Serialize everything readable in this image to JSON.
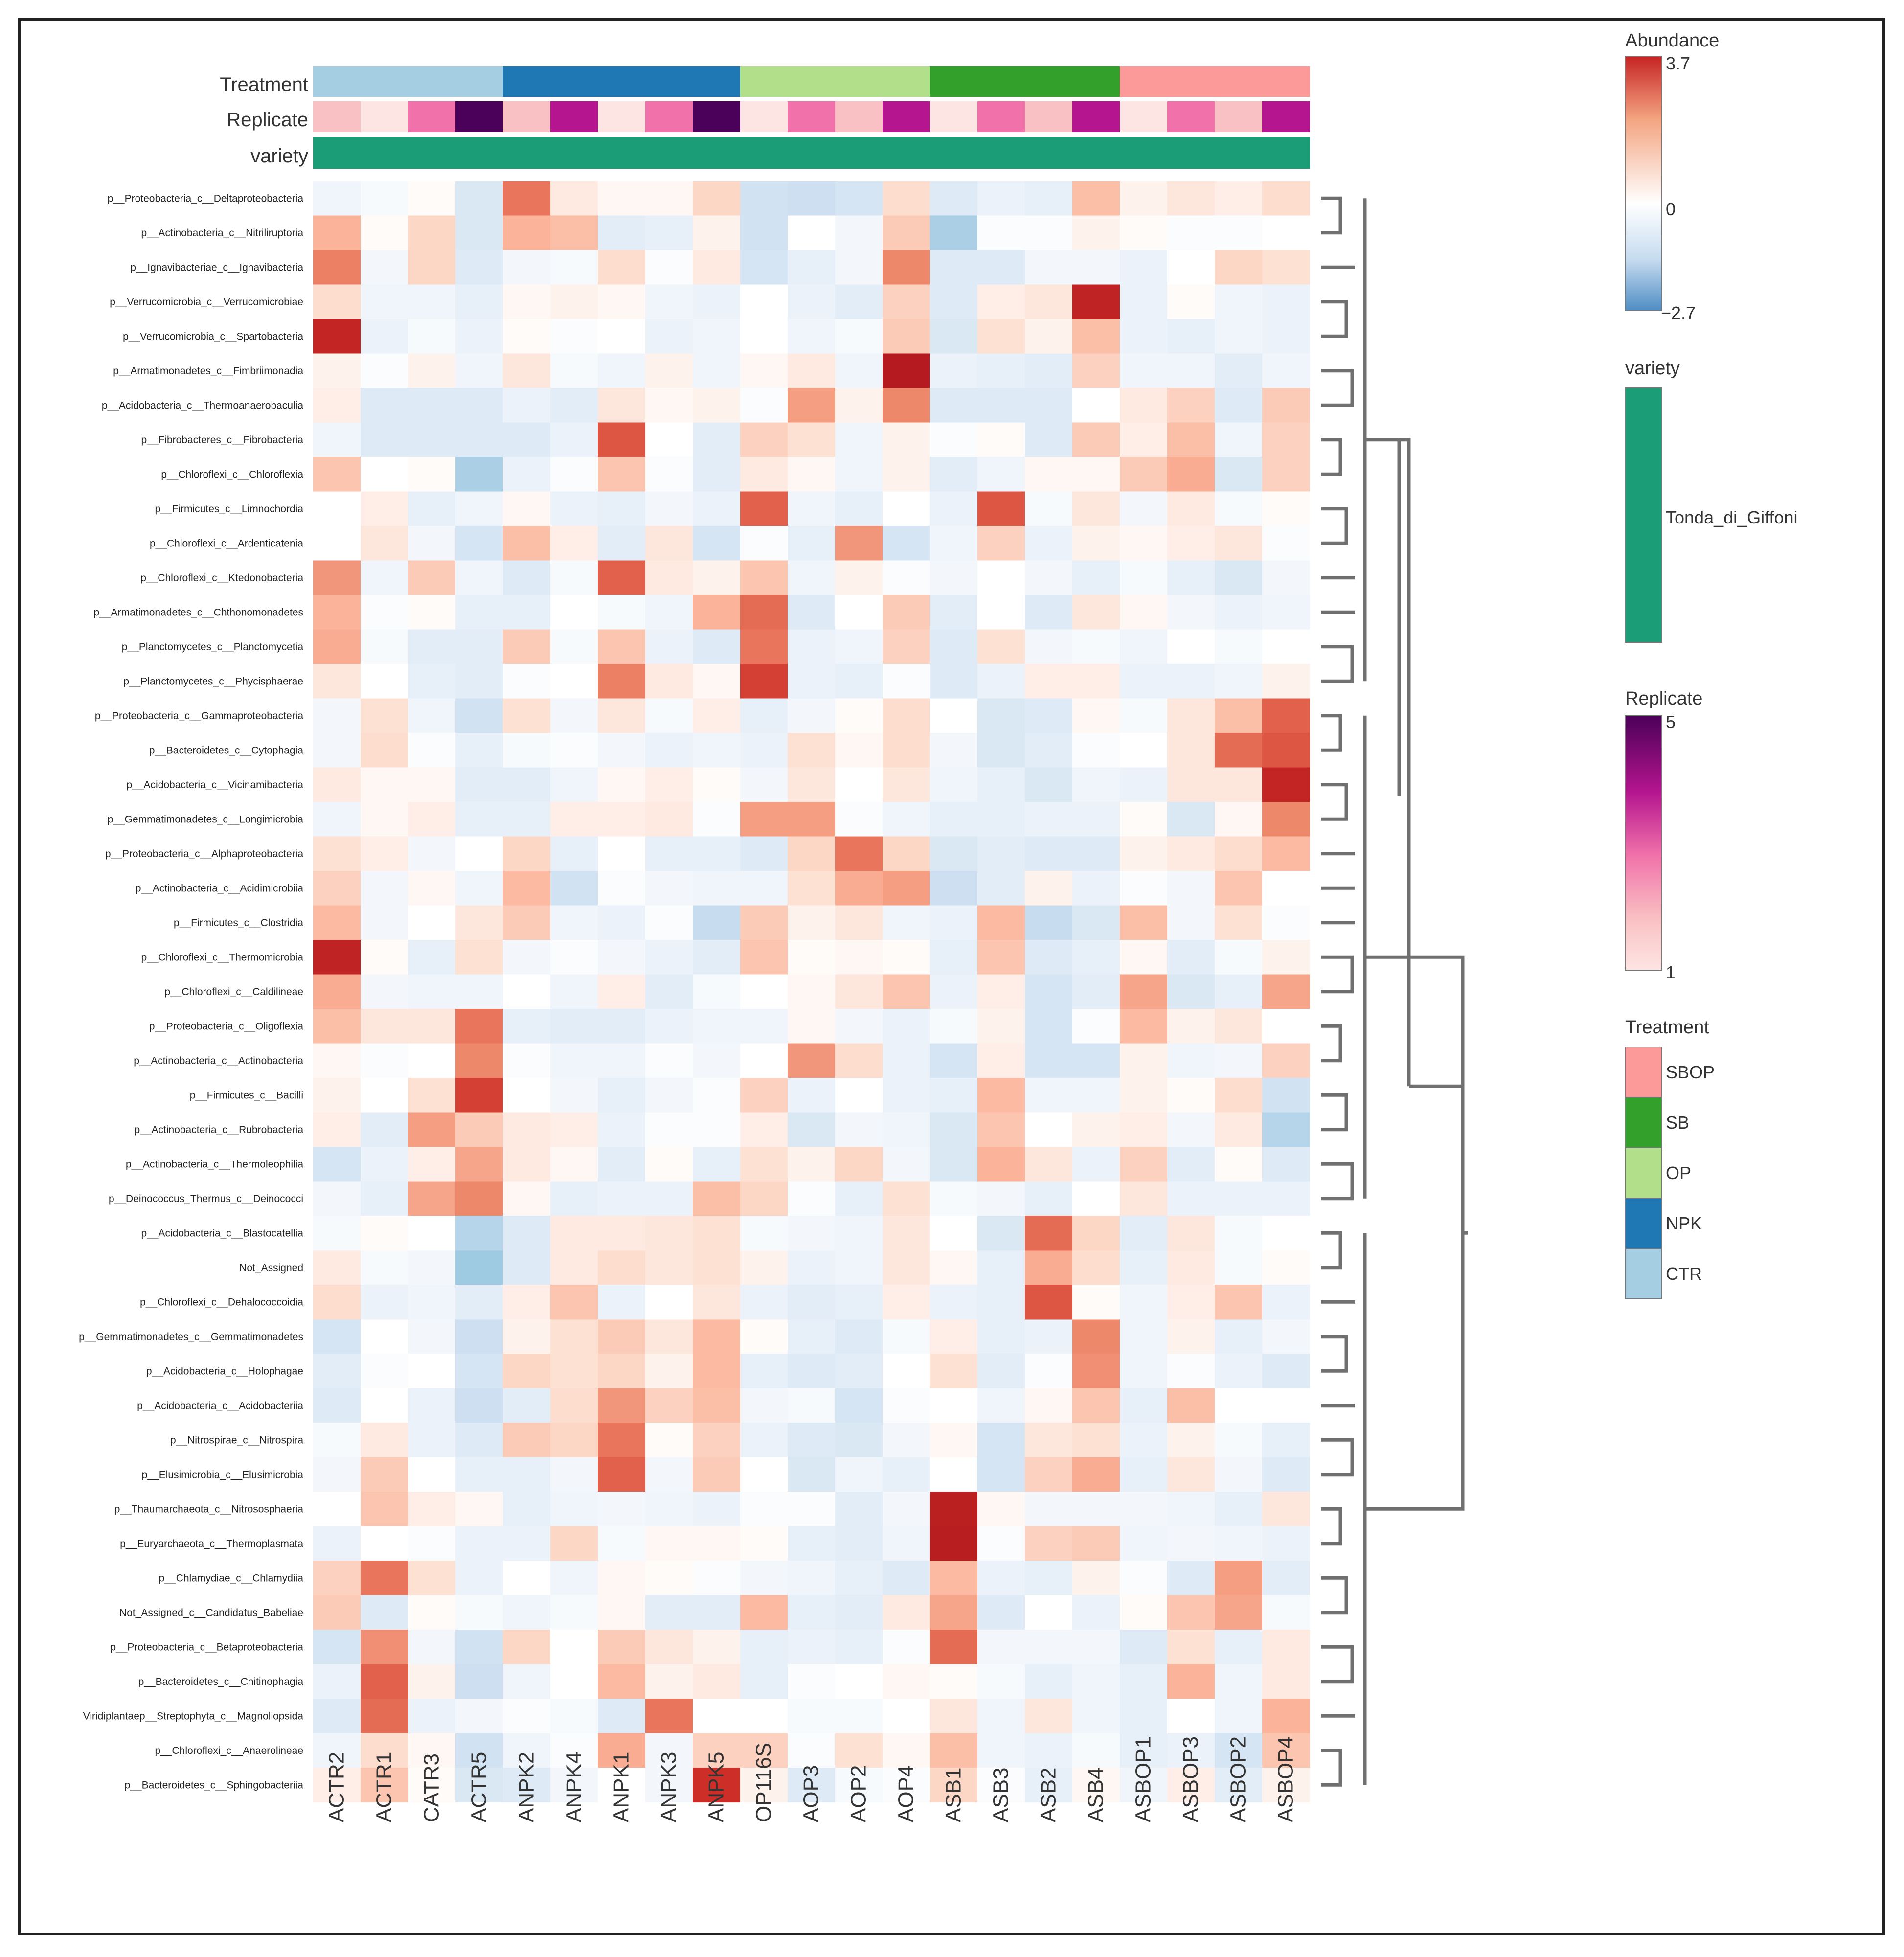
{
  "chart_data": {
    "type": "heatmap",
    "title": "",
    "columns": [
      "ACTR2",
      "ACTR1",
      "CATR3",
      "ACTR5",
      "ANPK2",
      "ANPK4",
      "ANPK1",
      "ANPK3",
      "ANPK5",
      "OP116S",
      "AOP3",
      "AOP2",
      "AOP4",
      "ASB1",
      "ASB3",
      "ASB2",
      "ASB4",
      "ASBOP1",
      "ASBOP3",
      "ASBOP2",
      "ASBOP4"
    ],
    "rows": [
      "p__Proteobacteria_c__Deltaproteobacteria",
      "p__Actinobacteria_c__Nitriliruptoria",
      "p__Ignavibacteriae_c__Ignavibacteria",
      "p__Verrucomicrobia_c__Verrucomicrobiae",
      "p__Verrucomicrobia_c__Spartobacteria",
      "p__Armatimonadetes_c__Fimbriimonadia",
      "p__Acidobacteria_c__Thermoanaerobaculia",
      "p__Fibrobacteres_c__Fibrobacteria",
      "p__Chloroflexi_c__Chloroflexia",
      "p__Firmicutes_c__Limnochordia",
      "p__Chloroflexi_c__Ardenticatenia",
      "p__Chloroflexi_c__Ktedonobacteria",
      "p__Armatimonadetes_c__Chthonomonadetes",
      "p__Planctomycetes_c__Planctomycetia",
      "p__Planctomycetes_c__Phycisphaerae",
      "p__Proteobacteria_c__Gammaproteobacteria",
      "p__Bacteroidetes_c__Cytophagia",
      "p__Acidobacteria_c__Vicinamibacteria",
      "p__Gemmatimonadetes_c__Longimicrobia",
      "p__Proteobacteria_c__Alphaproteobacteria",
      "p__Actinobacteria_c__Acidimicrobiia",
      "p__Firmicutes_c__Clostridia",
      "p__Chloroflexi_c__Thermomicrobia",
      "p__Chloroflexi_c__Caldilineae",
      "p__Proteobacteria_c__Oligoflexia",
      "p__Actinobacteria_c__Actinobacteria",
      "p__Firmicutes_c__Bacilli",
      "p__Actinobacteria_c__Rubrobacteria",
      "p__Actinobacteria_c__Thermoleophilia",
      "p__Deinococcus_Thermus_c__Deinococci",
      "p__Acidobacteria_c__Blastocatellia",
      "Not_Assigned",
      "p__Chloroflexi_c__Dehalococcoidia",
      "p__Gemmatimonadetes_c__Gemmatimonadetes",
      "p__Acidobacteria_c__Holophagae",
      "p__Acidobacteria_c__Acidobacteriia",
      "p__Nitrospirae_c__Nitrospira",
      "p__Elusimicrobia_c__Elusimicrobia",
      "p__Thaumarchaeota_c__Nitrososphaeria",
      "p__Euryarchaeota_c__Thermoplasmata",
      "p__Chlamydiae_c__Chlamydiia",
      "Not_Assigned_c__Candidatus_Babeliae",
      "p__Proteobacteria_c__Betaproteobacteria",
      "p__Bacteroidetes_c__Chitinophagia",
      "Viridiplantaep__Streptophyta_c__Magnoliopsida",
      "p__Chloroflexi_c__Anaerolineae",
      "p__Bacteroidetes_c__Sphingobacteriia"
    ],
    "values": [
      [
        -0.4,
        -0.2,
        0.1,
        -0.9,
        2.3,
        0.5,
        0.2,
        0.2,
        0.9,
        -1.1,
        -1.2,
        -1.0,
        0.8,
        -0.8,
        -0.5,
        -0.6,
        1.3,
        0.3,
        0.6,
        0.4,
        0.8
      ],
      [
        1.5,
        0.1,
        0.9,
        -0.9,
        1.5,
        1.3,
        -0.7,
        -0.6,
        0.3,
        -1.1,
        0.0,
        -0.3,
        1.1,
        -1.8,
        -0.1,
        -0.1,
        0.3,
        0.1,
        -0.1,
        -0.1,
        0.0
      ],
      [
        2.2,
        -0.3,
        0.9,
        -0.8,
        -0.3,
        -0.2,
        0.8,
        -0.1,
        0.5,
        -1.0,
        -0.6,
        -0.3,
        2.1,
        -0.8,
        -0.8,
        -0.3,
        -0.3,
        -0.5,
        0.0,
        0.9,
        0.7
      ],
      [
        0.8,
        -0.4,
        -0.4,
        -0.6,
        0.2,
        0.3,
        0.2,
        -0.4,
        -0.5,
        0.0,
        -0.5,
        -0.7,
        1.0,
        -0.8,
        0.4,
        0.6,
        3.4,
        -0.5,
        0.1,
        -0.4,
        -0.5
      ],
      [
        3.3,
        -0.5,
        -0.2,
        -0.5,
        0.1,
        -0.1,
        0.0,
        -0.5,
        -0.4,
        0.0,
        -0.4,
        -0.2,
        1.1,
        -0.9,
        0.7,
        0.3,
        1.3,
        -0.5,
        -0.6,
        -0.4,
        -0.5
      ],
      [
        0.3,
        -0.1,
        0.3,
        -0.4,
        0.6,
        -0.2,
        -0.4,
        0.3,
        -0.4,
        0.2,
        0.5,
        -0.4,
        3.7,
        -0.5,
        -0.6,
        -0.7,
        1.0,
        -0.4,
        -0.4,
        -0.7,
        -0.4
      ],
      [
        0.4,
        -0.8,
        -0.8,
        -0.8,
        -0.5,
        -0.7,
        0.6,
        0.2,
        0.3,
        -0.1,
        1.8,
        0.3,
        2.1,
        -0.8,
        -0.8,
        -0.8,
        0.0,
        0.5,
        1.0,
        -0.8,
        1.1
      ],
      [
        -0.4,
        -0.8,
        -0.8,
        -0.8,
        -0.8,
        -0.5,
        2.6,
        0.0,
        -0.7,
        1.0,
        0.7,
        -0.4,
        0.3,
        -0.1,
        0.1,
        -0.8,
        1.1,
        0.4,
        1.3,
        -0.4,
        1.0
      ],
      [
        1.2,
        0.0,
        0.1,
        -1.8,
        -0.5,
        -0.1,
        1.2,
        -0.1,
        -0.7,
        0.5,
        0.2,
        -0.4,
        0.3,
        -0.7,
        -0.4,
        0.2,
        0.2,
        1.1,
        1.6,
        -0.9,
        1.0
      ],
      [
        0.0,
        0.4,
        -0.6,
        -0.4,
        0.2,
        -0.5,
        -0.6,
        -0.3,
        -0.5,
        2.5,
        -0.4,
        -0.6,
        0.0,
        -0.5,
        2.6,
        -0.2,
        0.6,
        -0.3,
        0.5,
        -0.2,
        0.1
      ],
      [
        0.0,
        0.6,
        -0.3,
        -1.0,
        1.3,
        0.4,
        -0.7,
        0.6,
        -1.0,
        -0.1,
        -0.6,
        1.9,
        -1.0,
        -0.4,
        1.0,
        -0.5,
        0.3,
        0.2,
        0.4,
        0.6,
        -0.1
      ],
      [
        1.9,
        -0.4,
        1.1,
        -0.4,
        -0.8,
        -0.2,
        2.5,
        0.5,
        0.3,
        1.2,
        -0.4,
        0.3,
        -0.1,
        -0.3,
        0.0,
        -0.3,
        -0.6,
        -0.2,
        -0.6,
        -0.9,
        -0.3
      ],
      [
        1.5,
        -0.1,
        0.1,
        -0.6,
        -0.6,
        0.0,
        -0.2,
        -0.4,
        1.5,
        2.4,
        -0.8,
        0.0,
        1.1,
        -0.7,
        0.0,
        -0.8,
        0.6,
        0.2,
        -0.3,
        -0.5,
        -0.4
      ],
      [
        1.6,
        -0.2,
        -0.7,
        -0.7,
        1.1,
        -0.2,
        1.2,
        -0.5,
        -0.8,
        2.3,
        -0.5,
        -0.4,
        1.0,
        -0.8,
        0.7,
        -0.3,
        -0.2,
        -0.4,
        0.0,
        -0.2,
        0.0
      ],
      [
        0.6,
        0.0,
        -0.6,
        -0.7,
        -0.1,
        0.0,
        2.2,
        0.5,
        0.2,
        2.8,
        -0.5,
        -0.6,
        -0.1,
        -0.8,
        -0.5,
        0.4,
        0.4,
        -0.5,
        -0.5,
        -0.4,
        0.3
      ],
      [
        -0.3,
        0.7,
        -0.4,
        -1.1,
        0.7,
        -0.3,
        0.6,
        -0.2,
        0.4,
        -0.6,
        -0.3,
        0.1,
        0.8,
        0.0,
        -0.9,
        -0.8,
        0.2,
        -0.2,
        0.6,
        1.3,
        2.5
      ],
      [
        -0.3,
        0.8,
        -0.1,
        -0.6,
        -0.2,
        -0.1,
        -0.3,
        -0.5,
        -0.4,
        -0.5,
        0.7,
        0.2,
        0.8,
        -0.3,
        -0.9,
        -0.7,
        -0.1,
        0.0,
        0.6,
        2.4,
        2.6
      ],
      [
        0.5,
        0.2,
        0.2,
        -0.7,
        -0.7,
        -0.4,
        0.2,
        0.4,
        0.1,
        -0.3,
        0.6,
        0.0,
        0.6,
        -0.4,
        -0.6,
        -0.9,
        -0.4,
        -0.5,
        0.6,
        0.6,
        3.3
      ],
      [
        -0.4,
        0.2,
        0.4,
        -0.6,
        -0.6,
        0.4,
        0.4,
        0.5,
        -0.1,
        1.8,
        1.8,
        -0.1,
        -0.4,
        -0.6,
        -0.6,
        -0.5,
        -0.5,
        0.1,
        -0.9,
        0.2,
        2.1
      ],
      [
        0.7,
        0.4,
        -0.3,
        0.0,
        0.9,
        -0.6,
        0.0,
        -0.6,
        -0.6,
        -0.8,
        0.9,
        2.3,
        0.9,
        -0.9,
        -0.7,
        -0.8,
        -0.8,
        0.3,
        0.5,
        0.8,
        1.4
      ],
      [
        1.0,
        -0.3,
        0.2,
        -0.4,
        1.4,
        -1.1,
        -0.1,
        -0.3,
        -0.4,
        -0.4,
        0.7,
        1.6,
        1.8,
        -1.2,
        -0.7,
        0.3,
        -0.5,
        -0.1,
        -0.3,
        1.2,
        0.0
      ],
      [
        1.4,
        -0.3,
        0.0,
        0.6,
        1.1,
        -0.4,
        -0.5,
        -0.1,
        -1.3,
        1.1,
        0.3,
        0.6,
        -0.4,
        -0.5,
        1.4,
        -1.3,
        -0.9,
        1.3,
        -0.3,
        0.7,
        -0.1
      ],
      [
        3.4,
        0.1,
        -0.6,
        0.7,
        -0.3,
        -0.1,
        -0.3,
        -0.5,
        -0.7,
        1.2,
        0.1,
        0.2,
        0.1,
        -0.6,
        1.2,
        -0.8,
        -0.6,
        0.2,
        -0.7,
        -0.2,
        0.3
      ],
      [
        1.6,
        -0.3,
        -0.4,
        -0.4,
        0.0,
        -0.4,
        0.4,
        -0.7,
        -0.2,
        0.0,
        0.2,
        0.6,
        1.2,
        -0.5,
        0.4,
        -1.0,
        -0.7,
        1.7,
        -0.9,
        -0.6,
        1.7
      ],
      [
        1.3,
        0.6,
        0.6,
        2.3,
        -0.6,
        -0.7,
        -0.7,
        -0.5,
        -0.4,
        -0.4,
        0.2,
        -0.3,
        -0.5,
        -0.2,
        0.3,
        -1.0,
        -0.1,
        1.4,
        0.3,
        0.6,
        0.0
      ],
      [
        0.2,
        -0.1,
        0.0,
        2.1,
        -0.1,
        -0.4,
        -0.4,
        -0.1,
        -0.3,
        0.0,
        1.9,
        0.8,
        -0.5,
        -1.0,
        0.4,
        -1.0,
        -1.0,
        0.3,
        -0.4,
        -0.3,
        1.0
      ],
      [
        0.3,
        0.0,
        0.7,
        2.8,
        0.0,
        -0.3,
        -0.6,
        -0.3,
        -0.1,
        1.0,
        -0.5,
        0.0,
        -0.5,
        -0.6,
        1.4,
        -0.4,
        -0.4,
        0.3,
        0.1,
        0.8,
        -1.1
      ],
      [
        0.4,
        -0.7,
        1.8,
        1.1,
        0.5,
        0.4,
        -0.5,
        -0.1,
        -0.1,
        0.4,
        -0.9,
        -0.3,
        -0.4,
        -0.9,
        1.2,
        0.0,
        0.3,
        0.4,
        -0.3,
        0.5,
        -1.6
      ],
      [
        -1.0,
        -0.5,
        0.4,
        1.7,
        0.5,
        0.2,
        -0.7,
        0.1,
        -0.6,
        0.7,
        0.3,
        0.9,
        -0.3,
        -0.9,
        1.5,
        0.6,
        -0.5,
        1.0,
        -0.7,
        0.1,
        -0.8
      ],
      [
        -0.3,
        -0.6,
        1.7,
        2.1,
        0.2,
        -0.6,
        -0.5,
        -0.5,
        1.3,
        0.9,
        -0.1,
        -0.6,
        0.7,
        -0.2,
        -0.3,
        -0.6,
        0.0,
        0.6,
        -0.5,
        -0.5,
        -0.5
      ],
      [
        -0.2,
        0.1,
        0.0,
        -1.6,
        -0.8,
        0.5,
        0.5,
        0.6,
        0.7,
        -0.2,
        -0.3,
        -0.4,
        0.6,
        0.0,
        -0.9,
        2.4,
        0.9,
        -0.7,
        0.6,
        -0.2,
        0.0
      ],
      [
        0.5,
        -0.2,
        -0.3,
        -2.0,
        -0.8,
        0.5,
        0.8,
        0.6,
        0.7,
        0.3,
        -0.5,
        -0.4,
        0.6,
        0.2,
        -0.6,
        1.6,
        0.8,
        -0.6,
        0.5,
        -0.2,
        0.1
      ],
      [
        0.8,
        -0.5,
        -0.4,
        -0.7,
        0.4,
        1.2,
        -0.5,
        0.0,
        0.6,
        -0.5,
        -0.7,
        -0.6,
        0.4,
        -0.5,
        -0.6,
        2.6,
        0.1,
        -0.4,
        0.4,
        1.2,
        -0.5
      ],
      [
        -1.0,
        0.0,
        -0.3,
        -1.2,
        0.3,
        0.7,
        1.1,
        0.6,
        1.4,
        0.1,
        -0.6,
        -0.8,
        -0.2,
        0.4,
        -0.6,
        -0.5,
        2.1,
        -0.4,
        0.3,
        -0.6,
        -0.3
      ],
      [
        -0.7,
        -0.1,
        0.0,
        -1.0,
        0.9,
        0.7,
        0.9,
        0.3,
        1.4,
        -0.6,
        -0.8,
        -0.7,
        0.0,
        0.7,
        -0.7,
        -0.1,
        2.0,
        -0.4,
        -0.1,
        -0.5,
        -0.8
      ],
      [
        -0.8,
        0.0,
        -0.5,
        -1.2,
        -0.7,
        0.8,
        1.9,
        1.0,
        1.3,
        -0.3,
        -0.2,
        -1.0,
        -0.1,
        0.0,
        -0.4,
        0.2,
        1.2,
        -0.6,
        1.3,
        0.0,
        0.0
      ],
      [
        -0.2,
        0.5,
        -0.5,
        -0.8,
        1.1,
        0.9,
        2.3,
        0.1,
        1.0,
        -0.5,
        -0.8,
        -0.9,
        -0.3,
        0.2,
        -1.0,
        0.6,
        0.7,
        -0.5,
        0.3,
        -0.2,
        -0.6
      ],
      [
        -0.3,
        1.1,
        0.0,
        -0.6,
        -0.6,
        -0.3,
        2.5,
        -0.3,
        1.1,
        0.0,
        -0.9,
        -0.4,
        -0.6,
        0.0,
        -1.0,
        1.0,
        1.6,
        -0.6,
        0.6,
        -0.3,
        -0.8
      ],
      [
        0.0,
        1.2,
        0.4,
        0.2,
        -0.6,
        -0.4,
        -0.3,
        -0.4,
        -0.5,
        -0.1,
        -0.1,
        -0.7,
        -0.3,
        3.5,
        0.2,
        -0.3,
        -0.3,
        -0.3,
        -0.4,
        -0.6,
        0.6
      ],
      [
        -0.5,
        0.0,
        -0.1,
        -0.5,
        -0.5,
        0.9,
        -0.2,
        0.2,
        0.2,
        0.1,
        -0.6,
        -0.7,
        -0.4,
        3.6,
        -0.1,
        1.0,
        1.1,
        -0.4,
        -0.3,
        -0.4,
        -0.5
      ],
      [
        1.0,
        2.3,
        0.7,
        -0.5,
        0.0,
        -0.4,
        0.2,
        0.1,
        -0.1,
        -0.3,
        -0.4,
        -0.6,
        -0.8,
        1.4,
        -0.5,
        -0.6,
        0.3,
        -0.1,
        -0.8,
        1.8,
        -0.7
      ],
      [
        1.1,
        -0.8,
        0.1,
        -0.2,
        -0.4,
        -0.2,
        0.2,
        -0.7,
        -0.7,
        1.4,
        -0.6,
        -0.7,
        0.5,
        1.7,
        -0.8,
        0.0,
        -0.5,
        0.1,
        1.2,
        1.7,
        -0.2
      ],
      [
        -1.0,
        2.0,
        -0.3,
        -1.1,
        0.9,
        0.0,
        1.1,
        0.6,
        0.3,
        -0.6,
        -0.5,
        -0.6,
        -0.1,
        2.4,
        -0.3,
        -0.3,
        -0.3,
        -0.8,
        0.7,
        -0.6,
        0.5
      ],
      [
        -0.5,
        2.5,
        0.3,
        -1.2,
        -0.4,
        0.0,
        1.4,
        0.3,
        0.5,
        -0.6,
        -0.1,
        0.0,
        0.2,
        0.1,
        -0.2,
        -0.6,
        -0.4,
        -0.6,
        1.5,
        -0.4,
        0.5
      ],
      [
        -0.8,
        2.4,
        -0.5,
        -0.3,
        -0.1,
        -0.2,
        -0.8,
        2.3,
        0.0,
        0.0,
        -0.2,
        -0.2,
        0.0,
        0.6,
        -0.4,
        0.6,
        -0.4,
        -0.6,
        0.0,
        -0.4,
        1.5
      ],
      [
        -0.4,
        0.8,
        0.2,
        -1.1,
        -0.4,
        -0.1,
        1.6,
        -0.3,
        1.0,
        1.0,
        -0.1,
        0.7,
        0.2,
        1.3,
        -0.4,
        -0.5,
        -0.2,
        -0.6,
        -0.5,
        -1.0,
        1.2
      ],
      [
        0.4,
        1.2,
        0.1,
        -0.9,
        -0.8,
        -0.3,
        0.0,
        -0.3,
        3.0,
        0.3,
        -0.8,
        -0.2,
        -0.1,
        0.9,
        -0.1,
        -0.6,
        0.2,
        -0.4,
        0.4,
        -0.7,
        0.3
      ]
    ],
    "annotations": {
      "Treatment": [
        "CTR",
        "CTR",
        "CTR",
        "CTR",
        "NPK",
        "NPK",
        "NPK",
        "NPK",
        "NPK",
        "OP",
        "OP",
        "OP",
        "OP",
        "SB",
        "SB",
        "SB",
        "SB",
        "SBOP",
        "SBOP",
        "SBOP",
        "SBOP"
      ],
      "Replicate": [
        2,
        1,
        3,
        5,
        2,
        4,
        1,
        3,
        5,
        1,
        3,
        2,
        4,
        1,
        3,
        2,
        4,
        1,
        3,
        2,
        4
      ],
      "variety": [
        "Tonda_di_Giffoni",
        "Tonda_di_Giffoni",
        "Tonda_di_Giffoni",
        "Tonda_di_Giffoni",
        "Tonda_di_Giffoni",
        "Tonda_di_Giffoni",
        "Tonda_di_Giffoni",
        "Tonda_di_Giffoni",
        "Tonda_di_Giffoni",
        "Tonda_di_Giffoni",
        "Tonda_di_Giffoni",
        "Tonda_di_Giffoni",
        "Tonda_di_Giffoni",
        "Tonda_di_Giffoni",
        "Tonda_di_Giffoni",
        "Tonda_di_Giffoni",
        "Tonda_di_Giffoni",
        "Tonda_di_Giffoni",
        "Tonda_di_Giffoni",
        "Tonda_di_Giffoni",
        "Tonda_di_Giffoni"
      ]
    },
    "annotation_labels": [
      "Treatment",
      "Replicate",
      "variety"
    ],
    "color_scale": {
      "title": "Abundance",
      "min": -2.7,
      "mid": 0,
      "max": 3.7,
      "tick_labels": [
        "3.7",
        "0",
        "−2.7"
      ],
      "low": "#4f8dc4",
      "high": "#c62424",
      "center": "#ffffff"
    },
    "legends": {
      "variety": {
        "title": "variety",
        "items": [
          {
            "label": "Tonda_di_Giffoni",
            "color": "#1b9e77"
          }
        ]
      },
      "replicate": {
        "title": "Replicate",
        "min": 1,
        "max": 5,
        "tick_labels": [
          "5",
          "1"
        ]
      },
      "treatment": {
        "title": "Treatment",
        "items": [
          {
            "label": "SBOP",
            "color": "#fb9a99"
          },
          {
            "label": "SB",
            "color": "#33a02c"
          },
          {
            "label": "OP",
            "color": "#b2df8a"
          },
          {
            "label": "NPK",
            "color": "#1f78b4"
          },
          {
            "label": "CTR",
            "color": "#a6cee3"
          }
        ]
      }
    },
    "replicate_colors": {
      "1": "#fde5e3",
      "2": "#f9c1c3",
      "3": "#f172aa",
      "4": "#b5158f",
      "5": "#4b0059"
    },
    "row_dendrogram": "shown (hierarchical clustering of rows)"
  }
}
